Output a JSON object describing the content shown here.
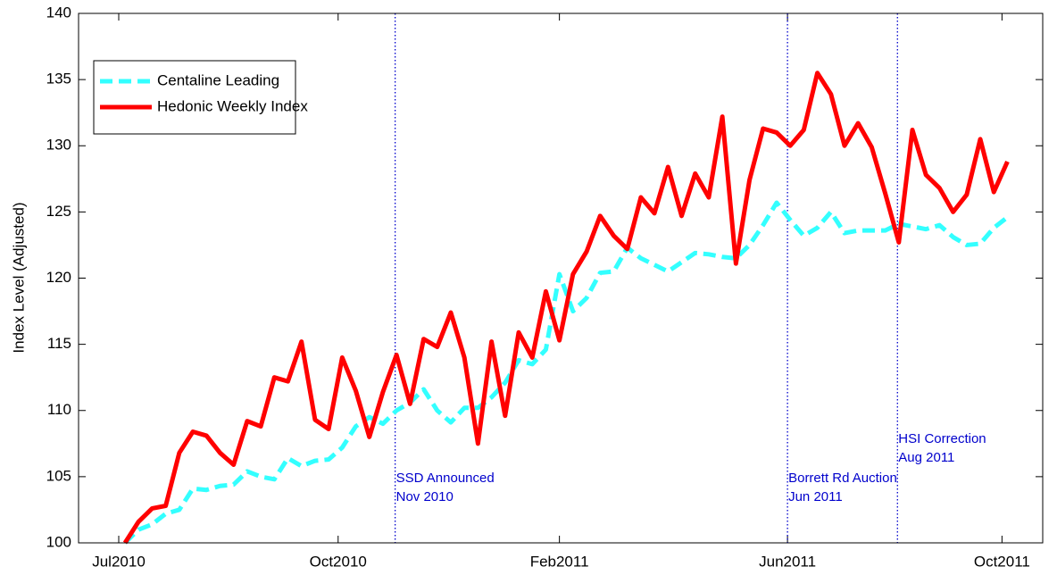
{
  "chart_data": {
    "type": "line",
    "ylabel": "Index Level (Adjusted)",
    "x": [
      0,
      1,
      2,
      3,
      4,
      5,
      6,
      7,
      8,
      9,
      10,
      11,
      12,
      13,
      14,
      15,
      16,
      17,
      18,
      19,
      20,
      21,
      22,
      23,
      24,
      25,
      26,
      27,
      28,
      29,
      30,
      31,
      32,
      33,
      34,
      35,
      36,
      37,
      38,
      39,
      40,
      41,
      42,
      43,
      44,
      45,
      46,
      47,
      48,
      49,
      50,
      51,
      52,
      53,
      54,
      55,
      56,
      57,
      58,
      59,
      60,
      61,
      62,
      63,
      64,
      65
    ],
    "series": [
      {
        "name": "Centaline Leading",
        "color": "#33ffff",
        "dashed": true,
        "values": [
          100.0,
          101.0,
          101.4,
          102.2,
          102.5,
          104.1,
          104.0,
          104.3,
          104.4,
          105.4,
          105.0,
          104.8,
          106.4,
          105.8,
          106.2,
          106.3,
          107.2,
          108.8,
          109.5,
          109.0,
          110.0,
          110.6,
          111.6,
          110.0,
          109.1,
          110.2,
          110.2,
          111.0,
          112.1,
          113.8,
          113.5,
          114.6,
          120.3,
          117.5,
          118.5,
          120.4,
          120.5,
          122.3,
          121.5,
          121.0,
          120.5,
          121.2,
          121.9,
          121.8,
          121.6,
          121.5,
          122.5,
          124.0,
          125.7,
          124.4,
          123.2,
          123.8,
          125.0,
          123.4,
          123.6,
          123.6,
          123.6,
          124.1,
          123.9,
          123.7,
          124.0,
          123.1,
          122.5,
          122.6,
          123.8,
          124.6
        ]
      },
      {
        "name": "Hedonic Weekly Index",
        "color": "#ff0000",
        "dashed": false,
        "values": [
          100.0,
          101.6,
          102.6,
          102.8,
          106.8,
          108.4,
          108.1,
          106.8,
          105.9,
          109.2,
          108.8,
          112.5,
          112.2,
          115.2,
          109.3,
          108.6,
          114.0,
          111.5,
          108.0,
          111.4,
          114.2,
          110.5,
          115.4,
          114.8,
          117.4,
          114.0,
          107.5,
          115.2,
          109.6,
          115.9,
          114.0,
          119.0,
          115.3,
          120.3,
          122.0,
          124.7,
          123.2,
          122.2,
          126.1,
          124.9,
          128.4,
          124.7,
          127.9,
          126.1,
          132.2,
          121.1,
          127.4,
          131.3,
          131.0,
          130.0,
          131.2,
          135.5,
          133.9,
          130.0,
          131.7,
          129.9,
          126.4,
          122.7,
          131.2,
          127.8,
          126.8,
          125.0,
          126.3,
          130.5,
          126.5,
          128.8
        ]
      }
    ],
    "xlim": [
      -3.42,
      67.6
    ],
    "xticks": [
      {
        "value": -0.46,
        "label": "Jul2010"
      },
      {
        "value": 15.7,
        "label": "Oct2010"
      },
      {
        "value": 32.0,
        "label": "Feb2011"
      },
      {
        "value": 48.8,
        "label": "Jun2011"
      },
      {
        "value": 64.6,
        "label": "Oct2011"
      }
    ],
    "ylim": [
      100,
      140
    ],
    "yticks": [
      100,
      105,
      110,
      115,
      120,
      125,
      130,
      135,
      140
    ],
    "legend": "upper left",
    "event_color": "#0000cc",
    "events": [
      {
        "x": 19.9,
        "lines": [
          "SSD Announced",
          "Nov 2010"
        ]
      },
      {
        "x": 48.8,
        "lines": [
          "Borrett Rd Auction",
          "Jun 2011"
        ]
      },
      {
        "x": 56.9,
        "lines": [
          "HSI Correction",
          "Aug 2011"
        ]
      }
    ]
  }
}
